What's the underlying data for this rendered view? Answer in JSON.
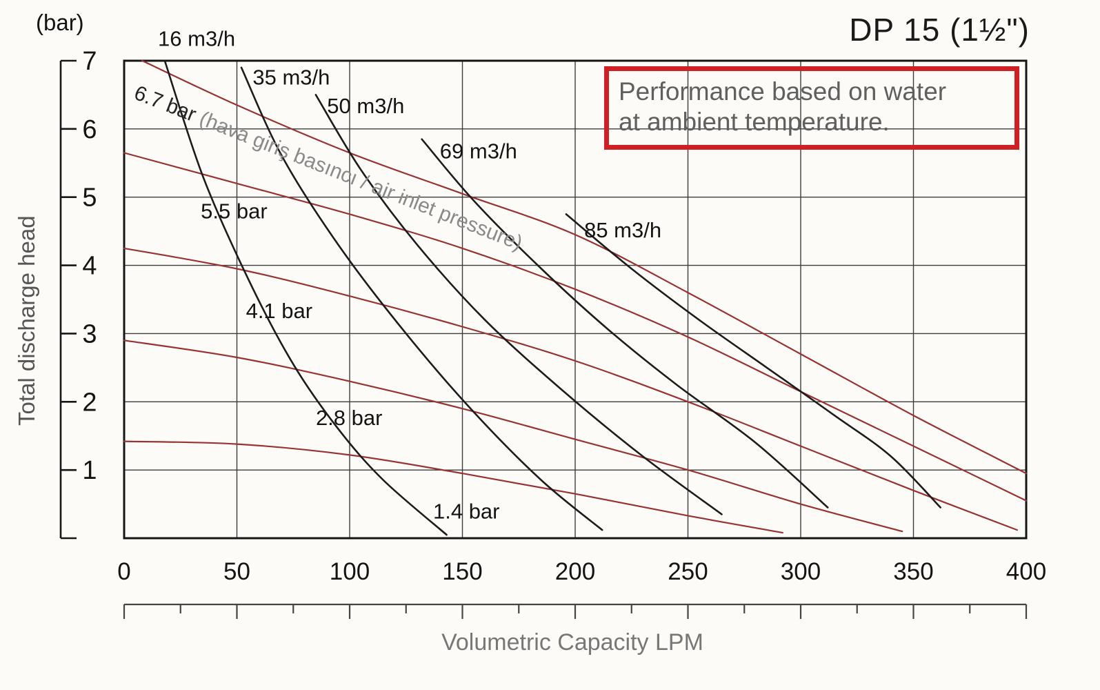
{
  "header": {
    "y_axis_unit": "(bar)",
    "title": "DP 15 (1½\")",
    "note_line1": "Performance based on water",
    "note_line2": "at ambient temperature."
  },
  "axes": {
    "y_title": "Total discharge head",
    "x_title": "Volumetric Capacity LPM",
    "y_ticks": [
      1,
      2,
      3,
      4,
      5,
      6,
      7
    ],
    "x_ticks": [
      0,
      50,
      100,
      150,
      200,
      250,
      300,
      350,
      400
    ]
  },
  "pressure_curve_label": {
    "value": "6.7 bar ",
    "suffix": "(hava giriş basıncı / air inlet pressure)"
  },
  "chart_data": {
    "type": "line",
    "title": "DP 15 (1½\") diaphragm pump performance, water at ambient temperature",
    "xlabel": "Volumetric Capacity LPM",
    "ylabel": "Total discharge head (bar)",
    "xlim": [
      0,
      400
    ],
    "ylim": [
      0,
      7
    ],
    "grid": true,
    "legend_position": "on-curve labels",
    "colors": {
      "air_inlet_pressure_curves": "#993333",
      "air_consumption_curves": "#1c1c1c",
      "note_border": "#cf2026"
    },
    "series": [
      {
        "id": "pressure-6-7",
        "label": "6.7 bar (hava giriş basıncı / air inlet pressure)",
        "group": "air_inlet_pressure",
        "color": "#993333",
        "width": 2.2,
        "label_pos": null,
        "points": [
          [
            8,
            7.0
          ],
          [
            50,
            6.35
          ],
          [
            100,
            5.65
          ],
          [
            150,
            5.05
          ],
          [
            200,
            4.45
          ],
          [
            250,
            3.6
          ],
          [
            300,
            2.7
          ],
          [
            350,
            1.8
          ],
          [
            400,
            0.95
          ]
        ]
      },
      {
        "id": "pressure-5-5",
        "label": "5.5 bar",
        "group": "air_inlet_pressure",
        "color": "#993333",
        "width": 2.2,
        "label_pos": [
          34,
          4.8
        ],
        "points": [
          [
            0,
            5.65
          ],
          [
            50,
            5.2
          ],
          [
            100,
            4.75
          ],
          [
            150,
            4.25
          ],
          [
            200,
            3.65
          ],
          [
            250,
            2.95
          ],
          [
            300,
            2.15
          ],
          [
            350,
            1.35
          ],
          [
            400,
            0.55
          ]
        ]
      },
      {
        "id": "pressure-4-1",
        "label": "4.1 bar",
        "group": "air_inlet_pressure",
        "color": "#993333",
        "width": 2.2,
        "label_pos": [
          54,
          3.34
        ],
        "points": [
          [
            0,
            4.25
          ],
          [
            50,
            3.95
          ],
          [
            100,
            3.55
          ],
          [
            150,
            3.1
          ],
          [
            200,
            2.6
          ],
          [
            250,
            2.0
          ],
          [
            300,
            1.35
          ],
          [
            350,
            0.7
          ],
          [
            396,
            0.12
          ]
        ]
      },
      {
        "id": "pressure-2-8",
        "label": "2.8 bar",
        "group": "air_inlet_pressure",
        "color": "#993333",
        "width": 2.2,
        "label_pos": [
          85,
          1.77
        ],
        "points": [
          [
            0,
            2.9
          ],
          [
            50,
            2.65
          ],
          [
            100,
            2.3
          ],
          [
            150,
            1.9
          ],
          [
            200,
            1.45
          ],
          [
            250,
            1.0
          ],
          [
            300,
            0.5
          ],
          [
            345,
            0.1
          ]
        ]
      },
      {
        "id": "pressure-1-4",
        "label": "1.4 bar",
        "group": "air_inlet_pressure",
        "color": "#993333",
        "width": 2.2,
        "label_pos": [
          137,
          0.4
        ],
        "points": [
          [
            0,
            1.42
          ],
          [
            50,
            1.38
          ],
          [
            100,
            1.22
          ],
          [
            150,
            0.95
          ],
          [
            200,
            0.65
          ],
          [
            250,
            0.33
          ],
          [
            292,
            0.08
          ]
        ]
      },
      {
        "id": "consumption-16",
        "label": "16 m3/h",
        "group": "air_consumption",
        "color": "#1c1c1c",
        "width": 2.6,
        "label_pos": [
          15,
          7.33
        ],
        "points": [
          [
            18,
            7.0
          ],
          [
            35,
            5.3
          ],
          [
            55,
            3.8
          ],
          [
            75,
            2.55
          ],
          [
            95,
            1.6
          ],
          [
            115,
            0.85
          ],
          [
            143,
            0.05
          ]
        ]
      },
      {
        "id": "consumption-35",
        "label": "35 m3/h",
        "group": "air_consumption",
        "color": "#1c1c1c",
        "width": 2.6,
        "label_pos": [
          57,
          6.76
        ],
        "points": [
          [
            52,
            6.9
          ],
          [
            70,
            5.6
          ],
          [
            95,
            4.3
          ],
          [
            125,
            3.0
          ],
          [
            155,
            1.85
          ],
          [
            185,
            0.85
          ],
          [
            212,
            0.12
          ]
        ]
      },
      {
        "id": "consumption-50",
        "label": "50 m3/h",
        "group": "air_consumption",
        "color": "#1c1c1c",
        "width": 2.6,
        "label_pos": [
          90,
          6.34
        ],
        "points": [
          [
            85,
            6.5
          ],
          [
            105,
            5.4
          ],
          [
            130,
            4.3
          ],
          [
            160,
            3.2
          ],
          [
            195,
            2.15
          ],
          [
            230,
            1.2
          ],
          [
            265,
            0.35
          ]
        ]
      },
      {
        "id": "consumption-69",
        "label": "69 m3/h",
        "group": "air_consumption",
        "color": "#1c1c1c",
        "width": 2.6,
        "label_pos": [
          140,
          5.68
        ],
        "points": [
          [
            132,
            5.85
          ],
          [
            155,
            4.95
          ],
          [
            185,
            3.95
          ],
          [
            215,
            3.05
          ],
          [
            245,
            2.25
          ],
          [
            280,
            1.4
          ],
          [
            312,
            0.45
          ]
        ]
      },
      {
        "id": "consumption-85",
        "label": "85 m3/h",
        "group": "air_consumption",
        "color": "#1c1c1c",
        "width": 2.6,
        "label_pos": [
          204,
          4.52
        ],
        "points": [
          [
            196,
            4.75
          ],
          [
            225,
            3.95
          ],
          [
            255,
            3.2
          ],
          [
            285,
            2.5
          ],
          [
            315,
            1.8
          ],
          [
            340,
            1.2
          ],
          [
            362,
            0.45
          ]
        ]
      }
    ]
  }
}
